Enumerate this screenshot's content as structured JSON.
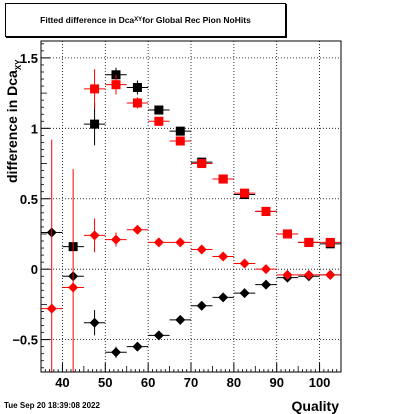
{
  "title": {
    "main": "Fitted difference in Dca",
    "sub": "XY",
    "rest": " for Global Rec Pion NoHits"
  },
  "ylabel": {
    "main": "difference in Dca",
    "sub": "XY"
  },
  "xlabel": "Quality",
  "timestamp": "Tue Sep 20 18:39:08 2022",
  "colors": {
    "black_series": "#000000",
    "red_series": "#ff0000",
    "grid": "#000000"
  },
  "chart_data": {
    "type": "scatter",
    "xlim": [
      35,
      105
    ],
    "ylim": [
      -0.73,
      1.62
    ],
    "grid": true,
    "xticks": [
      40,
      50,
      60,
      70,
      80,
      90,
      100
    ],
    "yticks": [
      -0.5,
      0,
      0.5,
      1,
      1.5
    ],
    "ytick_labels": [
      "−0.5",
      "0",
      "0.5",
      "1",
      "1.5"
    ],
    "series": [
      {
        "marker": "square",
        "color": "#000000",
        "points": [
          {
            "x": 47.5,
            "y": 1.03,
            "ey": 0.15
          },
          {
            "x": 52.5,
            "y": 1.38,
            "ey": 0.05
          },
          {
            "x": 57.5,
            "y": 1.29,
            "ey": 0.05
          },
          {
            "x": 62.5,
            "y": 1.13,
            "ey": 0.03
          },
          {
            "x": 67.5,
            "y": 0.98,
            "ey": 0.02
          },
          {
            "x": 72.5,
            "y": 0.76,
            "ey": 0.02
          },
          {
            "x": 77.5,
            "y": 0.64,
            "ey": 0.01
          },
          {
            "x": 82.5,
            "y": 0.53,
            "ey": 0.01
          },
          {
            "x": 87.5,
            "y": 0.41,
            "ey": 0.01
          },
          {
            "x": 92.5,
            "y": 0.25,
            "ey": 0.01
          },
          {
            "x": 97.5,
            "y": 0.19,
            "ey": 0.01
          },
          {
            "x": 102.5,
            "y": 0.18,
            "ey": 0.01
          },
          {
            "x": 42.5,
            "y": 0.16,
            "ey": 0.02
          }
        ]
      },
      {
        "marker": "square",
        "color": "#ff0000",
        "points": [
          {
            "x": 47.5,
            "y": 1.28,
            "ey": 0.14
          },
          {
            "x": 52.5,
            "y": 1.31,
            "ey": 0.07
          },
          {
            "x": 57.5,
            "y": 1.18,
            "ey": 0.04
          },
          {
            "x": 62.5,
            "y": 1.05,
            "ey": 0.02
          },
          {
            "x": 67.5,
            "y": 0.91,
            "ey": 0.02
          },
          {
            "x": 72.5,
            "y": 0.75,
            "ey": 0.02
          },
          {
            "x": 77.5,
            "y": 0.64,
            "ey": 0.01
          },
          {
            "x": 82.5,
            "y": 0.54,
            "ey": 0.01
          },
          {
            "x": 87.5,
            "y": 0.41,
            "ey": 0.01
          },
          {
            "x": 92.5,
            "y": 0.25,
            "ey": 0.01
          },
          {
            "x": 97.5,
            "y": 0.19,
            "ey": 0.01
          },
          {
            "x": 102.5,
            "y": 0.19,
            "ey": 0.01
          }
        ]
      },
      {
        "marker": "diamond",
        "color": "#000000",
        "points": [
          {
            "x": 37.5,
            "y": 0.26,
            "ey": 0.0
          },
          {
            "x": 42.5,
            "y": -0.05,
            "ey": 0.0
          },
          {
            "x": 47.5,
            "y": -0.38,
            "ey": 0.09
          },
          {
            "x": 52.5,
            "y": -0.59,
            "ey": 0.04
          },
          {
            "x": 57.5,
            "y": -0.55,
            "ey": 0.03
          },
          {
            "x": 62.5,
            "y": -0.47,
            "ey": 0.02
          },
          {
            "x": 67.5,
            "y": -0.36,
            "ey": 0.01
          },
          {
            "x": 72.5,
            "y": -0.26,
            "ey": 0.01
          },
          {
            "x": 77.5,
            "y": -0.2,
            "ey": 0.01
          },
          {
            "x": 82.5,
            "y": -0.17,
            "ey": 0.01
          },
          {
            "x": 87.5,
            "y": -0.11,
            "ey": 0.01
          },
          {
            "x": 92.5,
            "y": -0.06,
            "ey": 0.01
          },
          {
            "x": 97.5,
            "y": -0.05,
            "ey": 0.01
          },
          {
            "x": 102.5,
            "y": -0.04,
            "ey": 0.01
          }
        ]
      },
      {
        "marker": "diamond",
        "color": "#ff0000",
        "points": [
          {
            "x": 37.5,
            "y": -0.28,
            "ey": 1.2
          },
          {
            "x": 42.5,
            "y": -0.13,
            "ey": 0.84
          },
          {
            "x": 47.5,
            "y": 0.24,
            "ey": 0.12
          },
          {
            "x": 52.5,
            "y": 0.21,
            "ey": 0.05
          },
          {
            "x": 57.5,
            "y": 0.28,
            "ey": 0.03
          },
          {
            "x": 62.5,
            "y": 0.19,
            "ey": 0.02
          },
          {
            "x": 67.5,
            "y": 0.19,
            "ey": 0.01
          },
          {
            "x": 72.5,
            "y": 0.14,
            "ey": 0.01
          },
          {
            "x": 77.5,
            "y": 0.09,
            "ey": 0.01
          },
          {
            "x": 82.5,
            "y": 0.04,
            "ey": 0.01
          },
          {
            "x": 87.5,
            "y": 0.0,
            "ey": 0.01
          },
          {
            "x": 92.5,
            "y": -0.04,
            "ey": 0.01
          },
          {
            "x": 97.5,
            "y": -0.04,
            "ey": 0.01
          },
          {
            "x": 102.5,
            "y": -0.04,
            "ey": 0.01
          }
        ]
      }
    ]
  }
}
